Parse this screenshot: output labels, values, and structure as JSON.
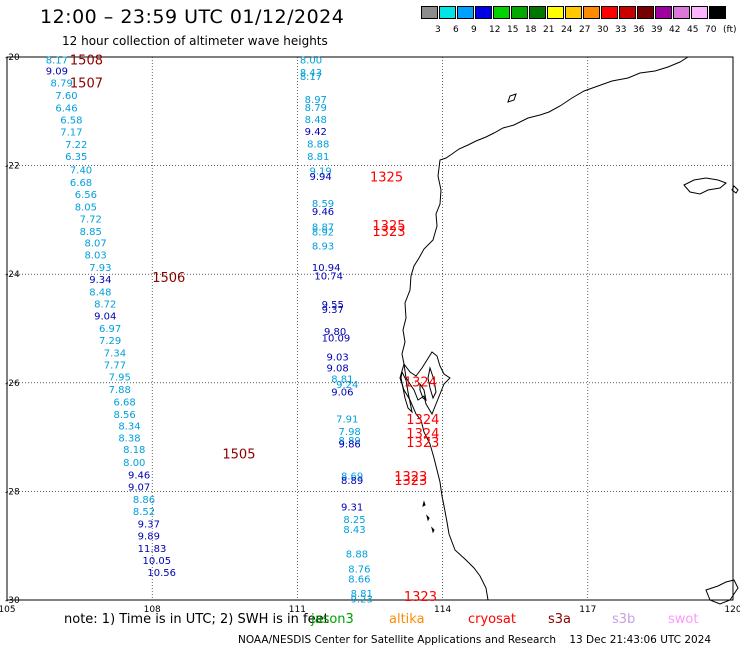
{
  "header": {
    "title": "12:00 – 23:59 UTC 01/12/2024",
    "subtitle": "12 hour collection of altimeter wave heights"
  },
  "color_scale": {
    "unit_label": "(ft)",
    "bins": [
      {
        "label": "3",
        "color": "#8c8c8c"
      },
      {
        "label": "6",
        "color": "#00e6e6"
      },
      {
        "label": "9",
        "color": "#00a0ff"
      },
      {
        "label": "12",
        "color": "#0000e6"
      },
      {
        "label": "15",
        "color": "#00d200"
      },
      {
        "label": "18",
        "color": "#00aa00"
      },
      {
        "label": "21",
        "color": "#007800"
      },
      {
        "label": "24",
        "color": "#ffff00"
      },
      {
        "label": "27",
        "color": "#ffc800"
      },
      {
        "label": "30",
        "color": "#ff8c00"
      },
      {
        "label": "33",
        "color": "#ff0000"
      },
      {
        "label": "36",
        "color": "#c80000"
      },
      {
        "label": "39",
        "color": "#780000"
      },
      {
        "label": "42",
        "color": "#a000a0"
      },
      {
        "label": "45",
        "color": "#dc78dc"
      },
      {
        "label": "70",
        "color": "#ffb4ff"
      },
      {
        "label": "",
        "color": "#000000"
      }
    ]
  },
  "map": {
    "lon_ticks": [
      "105",
      "108",
      "111",
      "114",
      "117",
      "120"
    ],
    "lat_ticks": [
      "-20",
      "-22",
      "-24",
      "-26",
      "-28",
      "-30"
    ],
    "labels": [
      {
        "text": "8.17",
        "lon": 105.8,
        "lat": -20.05,
        "color": "#00a0dc"
      },
      {
        "text": "9.09",
        "lon": 105.8,
        "lat": -20.25,
        "color": "#0000b4"
      },
      {
        "text": "8.79",
        "lon": 105.9,
        "lat": -20.47,
        "color": "#00a0dc"
      },
      {
        "text": "7.60",
        "lon": 106.0,
        "lat": -20.7,
        "color": "#00a0dc"
      },
      {
        "text": "6.46",
        "lon": 106.0,
        "lat": -20.93,
        "color": "#00a0dc"
      },
      {
        "text": "6.58",
        "lon": 106.1,
        "lat": -21.15,
        "color": "#00a0dc"
      },
      {
        "text": "7.17",
        "lon": 106.1,
        "lat": -21.37,
        "color": "#00a0dc"
      },
      {
        "text": "7.22",
        "lon": 106.2,
        "lat": -21.6,
        "color": "#00a0dc"
      },
      {
        "text": "6.35",
        "lon": 106.2,
        "lat": -21.82,
        "color": "#00a0dc"
      },
      {
        "text": "7.40",
        "lon": 106.3,
        "lat": -22.07,
        "color": "#00a0dc"
      },
      {
        "text": "6.68",
        "lon": 106.3,
        "lat": -22.3,
        "color": "#00a0dc"
      },
      {
        "text": "6.56",
        "lon": 106.4,
        "lat": -22.52,
        "color": "#00a0dc"
      },
      {
        "text": "8.05",
        "lon": 106.4,
        "lat": -22.75,
        "color": "#00a0dc"
      },
      {
        "text": "7.72",
        "lon": 106.5,
        "lat": -22.97,
        "color": "#00a0dc"
      },
      {
        "text": "8.85",
        "lon": 106.5,
        "lat": -23.2,
        "color": "#00a0dc"
      },
      {
        "text": "8.07",
        "lon": 106.6,
        "lat": -23.42,
        "color": "#00a0dc"
      },
      {
        "text": "8.03",
        "lon": 106.6,
        "lat": -23.64,
        "color": "#00a0dc"
      },
      {
        "text": "7.93",
        "lon": 106.7,
        "lat": -23.87,
        "color": "#00a0dc"
      },
      {
        "text": "9.34",
        "lon": 106.7,
        "lat": -24.09,
        "color": "#0000b4"
      },
      {
        "text": "8.48",
        "lon": 106.7,
        "lat": -24.32,
        "color": "#00a0dc"
      },
      {
        "text": "8.72",
        "lon": 106.8,
        "lat": -24.54,
        "color": "#00a0dc"
      },
      {
        "text": "9.04",
        "lon": 106.8,
        "lat": -24.76,
        "color": "#0000b4"
      },
      {
        "text": "6.97",
        "lon": 106.9,
        "lat": -24.99,
        "color": "#00a0dc"
      },
      {
        "text": "7.29",
        "lon": 106.9,
        "lat": -25.21,
        "color": "#00a0dc"
      },
      {
        "text": "7.34",
        "lon": 107.0,
        "lat": -25.44,
        "color": "#00a0dc"
      },
      {
        "text": "7.77",
        "lon": 107.0,
        "lat": -25.66,
        "color": "#00a0dc"
      },
      {
        "text": "7.95",
        "lon": 107.1,
        "lat": -25.88,
        "color": "#00a0dc"
      },
      {
        "text": "7.88",
        "lon": 107.1,
        "lat": -26.11,
        "color": "#00a0dc"
      },
      {
        "text": "6.68",
        "lon": 107.2,
        "lat": -26.34,
        "color": "#00a0dc"
      },
      {
        "text": "8.56",
        "lon": 107.2,
        "lat": -26.57,
        "color": "#00a0dc"
      },
      {
        "text": "8.34",
        "lon": 107.3,
        "lat": -26.79,
        "color": "#00a0dc"
      },
      {
        "text": "8.38",
        "lon": 107.3,
        "lat": -27.01,
        "color": "#00a0dc"
      },
      {
        "text": "8.18",
        "lon": 107.4,
        "lat": -27.22,
        "color": "#00a0dc"
      },
      {
        "text": "8.00",
        "lon": 107.4,
        "lat": -27.46,
        "color": "#00a0dc"
      },
      {
        "text": "9.46",
        "lon": 107.5,
        "lat": -27.69,
        "color": "#0000b4"
      },
      {
        "text": "9.07",
        "lon": 107.5,
        "lat": -27.91,
        "color": "#0000b4"
      },
      {
        "text": "8.86",
        "lon": 107.6,
        "lat": -28.14,
        "color": "#00a0dc"
      },
      {
        "text": "8.52",
        "lon": 107.6,
        "lat": -28.36,
        "color": "#00a0dc"
      },
      {
        "text": "9.37",
        "lon": 107.7,
        "lat": -28.59,
        "color": "#0000b4"
      },
      {
        "text": "9.89",
        "lon": 107.7,
        "lat": -28.81,
        "color": "#0000b4"
      },
      {
        "text": "11.83",
        "lon": 107.7,
        "lat": -29.04,
        "color": "#0000b4"
      },
      {
        "text": "10.05",
        "lon": 107.8,
        "lat": -29.26,
        "color": "#0000b4"
      },
      {
        "text": "10.56",
        "lon": 107.9,
        "lat": -29.48,
        "color": "#0000b4"
      },
      {
        "text": "8.00",
        "lon": 111.05,
        "lat": -20.05,
        "color": "#00a0dc"
      },
      {
        "text": "8.43",
        "lon": 111.05,
        "lat": -20.28,
        "color": "#00a0dc"
      },
      {
        "text": "8.17",
        "lon": 111.05,
        "lat": -20.35,
        "color": "#00a0dc"
      },
      {
        "text": "8.97",
        "lon": 111.15,
        "lat": -20.77,
        "color": "#00a0dc"
      },
      {
        "text": "8.79",
        "lon": 111.15,
        "lat": -20.92,
        "color": "#00a0dc"
      },
      {
        "text": "8.48",
        "lon": 111.15,
        "lat": -21.14,
        "color": "#00a0dc"
      },
      {
        "text": "9.42",
        "lon": 111.15,
        "lat": -21.36,
        "color": "#0000b4"
      },
      {
        "text": "8.88",
        "lon": 111.2,
        "lat": -21.59,
        "color": "#00a0dc"
      },
      {
        "text": "8.81",
        "lon": 111.2,
        "lat": -21.82,
        "color": "#00a0dc"
      },
      {
        "text": "9.19",
        "lon": 111.25,
        "lat": -22.09,
        "color": "#00a0dc"
      },
      {
        "text": "9.94",
        "lon": 111.25,
        "lat": -22.19,
        "color": "#0000b4"
      },
      {
        "text": "8.59",
        "lon": 111.3,
        "lat": -22.69,
        "color": "#00a0dc"
      },
      {
        "text": "9.46",
        "lon": 111.3,
        "lat": -22.84,
        "color": "#0000b4"
      },
      {
        "text": "8.87",
        "lon": 111.3,
        "lat": -23.12,
        "color": "#00a0dc"
      },
      {
        "text": "8.92",
        "lon": 111.3,
        "lat": -23.21,
        "color": "#00a0dc"
      },
      {
        "text": "8.93",
        "lon": 111.3,
        "lat": -23.47,
        "color": "#00a0dc"
      },
      {
        "text": "10.94",
        "lon": 111.3,
        "lat": -23.87,
        "color": "#0000b4"
      },
      {
        "text": "10.74",
        "lon": 111.35,
        "lat": -24.02,
        "color": "#0000b4"
      },
      {
        "text": "9.55",
        "lon": 111.5,
        "lat": -24.55,
        "color": "#0000b4"
      },
      {
        "text": "9.37",
        "lon": 111.5,
        "lat": -24.64,
        "color": "#0000b4"
      },
      {
        "text": "9.80",
        "lon": 111.55,
        "lat": -25.05,
        "color": "#0000b4"
      },
      {
        "text": "10.09",
        "lon": 111.5,
        "lat": -25.17,
        "color": "#0000b4"
      },
      {
        "text": "9.03",
        "lon": 111.6,
        "lat": -25.52,
        "color": "#0000b4"
      },
      {
        "text": "9.08",
        "lon": 111.6,
        "lat": -25.72,
        "color": "#0000b4"
      },
      {
        "text": "8.81",
        "lon": 111.7,
        "lat": -25.92,
        "color": "#00a0dc"
      },
      {
        "text": "9.24",
        "lon": 111.8,
        "lat": -26.02,
        "color": "#00a0dc"
      },
      {
        "text": "9.06",
        "lon": 111.7,
        "lat": -26.16,
        "color": "#0000b4"
      },
      {
        "text": "7.91",
        "lon": 111.8,
        "lat": -26.66,
        "color": "#00a0dc"
      },
      {
        "text": "7.98",
        "lon": 111.85,
        "lat": -26.89,
        "color": "#00a0dc"
      },
      {
        "text": "8.89",
        "lon": 111.85,
        "lat": -27.05,
        "color": "#00a0dc"
      },
      {
        "text": "9.86",
        "lon": 111.85,
        "lat": -27.12,
        "color": "#0000b4"
      },
      {
        "text": "8.69",
        "lon": 111.9,
        "lat": -27.71,
        "color": "#00a0dc"
      },
      {
        "text": "8.89",
        "lon": 111.9,
        "lat": -27.79,
        "color": "#0000b4"
      },
      {
        "text": "9.31",
        "lon": 111.9,
        "lat": -28.28,
        "color": "#0000b4"
      },
      {
        "text": "8.25",
        "lon": 111.95,
        "lat": -28.51,
        "color": "#00a0dc"
      },
      {
        "text": "8.43",
        "lon": 111.95,
        "lat": -28.69,
        "color": "#00a0dc"
      },
      {
        "text": "8.88",
        "lon": 112.0,
        "lat": -29.14,
        "color": "#00a0dc"
      },
      {
        "text": "8.76",
        "lon": 112.05,
        "lat": -29.42,
        "color": "#00a0dc"
      },
      {
        "text": "8.66",
        "lon": 112.05,
        "lat": -29.6,
        "color": "#00a0dc"
      },
      {
        "text": "8.81",
        "lon": 112.1,
        "lat": -29.87,
        "color": "#00a0dc"
      },
      {
        "text": "9.23",
        "lon": 112.1,
        "lat": -29.97,
        "color": "#00a0dc"
      }
    ],
    "passes": [
      {
        "text": "1508",
        "lon": 106.3,
        "lat": -20.05,
        "color": "#8b0000"
      },
      {
        "text": "1507",
        "lon": 106.3,
        "lat": -20.47,
        "color": "#8b0000"
      },
      {
        "text": "1506",
        "lon": 108.0,
        "lat": -24.05,
        "color": "#8b0000"
      },
      {
        "text": "1505",
        "lon": 109.45,
        "lat": -27.3,
        "color": "#8b0000"
      },
      {
        "text": "1325",
        "lon": 112.5,
        "lat": -22.2,
        "color": "#ff0000"
      },
      {
        "text": "1325",
        "lon": 112.55,
        "lat": -23.09,
        "color": "#ff0000"
      },
      {
        "text": "1323",
        "lon": 112.55,
        "lat": -23.2,
        "color": "#ff0000"
      },
      {
        "text": "1324",
        "lon": 113.2,
        "lat": -25.98,
        "color": "#ff0000"
      },
      {
        "text": "1324",
        "lon": 113.25,
        "lat": -26.67,
        "color": "#ff0000"
      },
      {
        "text": "1324",
        "lon": 113.25,
        "lat": -26.92,
        "color": "#ff0000"
      },
      {
        "text": "1323",
        "lon": 113.25,
        "lat": -27.09,
        "color": "#ff0000"
      },
      {
        "text": "1323",
        "lon": 113.0,
        "lat": -27.72,
        "color": "#ff0000"
      },
      {
        "text": "1323",
        "lon": 113.0,
        "lat": -27.79,
        "color": "#ff0000"
      },
      {
        "text": "1323",
        "lon": 113.2,
        "lat": -29.93,
        "color": "#ff0000"
      }
    ]
  },
  "footer": {
    "note": "note:  1) Time is in UTC; 2) SWH is in feet",
    "satellites": [
      {
        "name": "jason3",
        "color": "#00a000"
      },
      {
        "name": "altika",
        "color": "#ff8c00"
      },
      {
        "name": "cryosat",
        "color": "#ff0000"
      },
      {
        "name": "s3a",
        "color": "#8b0000"
      },
      {
        "name": "s3b",
        "color": "#c8a0e6"
      },
      {
        "name": "swot",
        "color": "#ff96ff"
      }
    ],
    "credit": "NOAA/NESDIS Center for Satellite Applications and Research    13 Dec 21:43:06 UTC 2024"
  }
}
